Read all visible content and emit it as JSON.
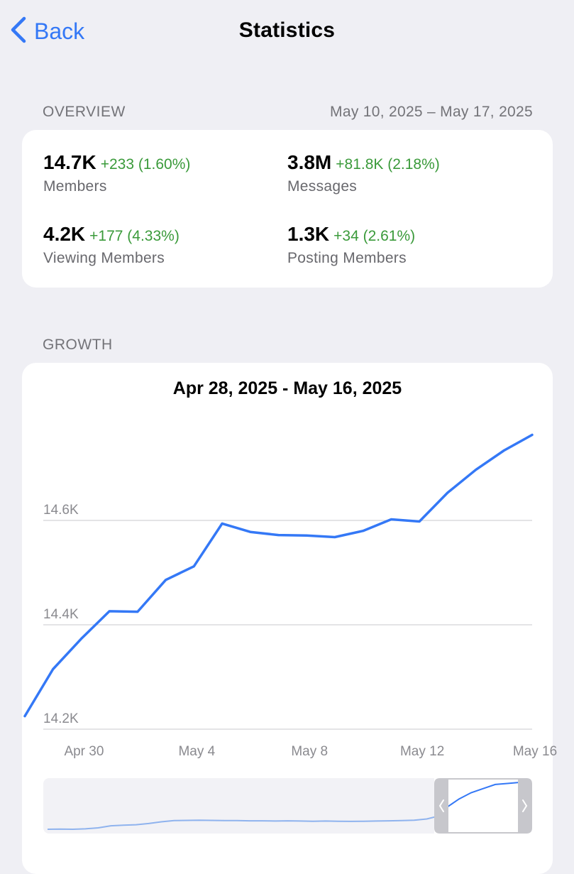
{
  "nav": {
    "back_label": "Back",
    "title": "Statistics"
  },
  "overview": {
    "header": "OVERVIEW",
    "range": "May 10, 2025 – May 17, 2025",
    "stats": [
      {
        "value": "14.7K",
        "delta": "+233 (1.60%)",
        "label": "Members"
      },
      {
        "value": "3.8M",
        "delta": "+81.8K (2.18%)",
        "label": "Messages"
      },
      {
        "value": "4.2K",
        "delta": "+177 (4.33%)",
        "label": "Viewing Members"
      },
      {
        "value": "1.3K",
        "delta": "+34 (2.61%)",
        "label": "Posting Members"
      }
    ]
  },
  "growth": {
    "header": "GROWTH"
  },
  "colors": {
    "accent": "#3478f6",
    "positive": "#3a9a3a",
    "background": "#efeff4"
  },
  "chart_data": {
    "type": "line",
    "title": "Apr 28, 2025 - May 16, 2025",
    "xlabel": "",
    "ylabel": "",
    "x": [
      "2025-04-28",
      "2025-04-29",
      "2025-04-30",
      "2025-05-01",
      "2025-05-02",
      "2025-05-03",
      "2025-05-04",
      "2025-05-05",
      "2025-05-06",
      "2025-05-07",
      "2025-05-08",
      "2025-05-09",
      "2025-05-10",
      "2025-05-11",
      "2025-05-12",
      "2025-05-13",
      "2025-05-14",
      "2025-05-15",
      "2025-05-16"
    ],
    "series": [
      {
        "values": [
          14225,
          14315,
          14373,
          14426,
          14425,
          14486,
          14512,
          14594,
          14578,
          14572,
          14571,
          14568,
          14580,
          14602,
          14598,
          14653,
          14697,
          14734,
          14764
        ]
      }
    ],
    "ylim": [
      14200,
      14800
    ],
    "y_ticks": [
      {
        "value": 14600,
        "label": "14.6K"
      },
      {
        "value": 14400,
        "label": "14.4K"
      },
      {
        "value": 14200,
        "label": "14.2K"
      }
    ],
    "x_ticks": [
      {
        "date": "2025-04-30",
        "label": "Apr 30"
      },
      {
        "date": "2025-05-04",
        "label": "May 4"
      },
      {
        "date": "2025-05-08",
        "label": "May 8"
      },
      {
        "date": "2025-05-12",
        "label": "May 12"
      },
      {
        "date": "2025-05-16",
        "label": "May 16"
      }
    ],
    "grid": true,
    "line_color": "#3478f6",
    "overview": {
      "values": [
        13480,
        13481,
        13480,
        13482,
        13487,
        13497,
        13500,
        13502,
        13508,
        13516,
        13522,
        13523,
        13524,
        13523,
        13522,
        13522,
        13521,
        13521,
        13520,
        13521,
        13520,
        13519,
        13520,
        13519,
        13518,
        13519,
        13520,
        13521,
        13522,
        13524,
        13530,
        13545,
        13580,
        13620,
        13650,
        13670,
        13690,
        13695,
        13700
      ],
      "selected_from": "2025-04-28",
      "selected_to": "2025-05-16"
    }
  }
}
